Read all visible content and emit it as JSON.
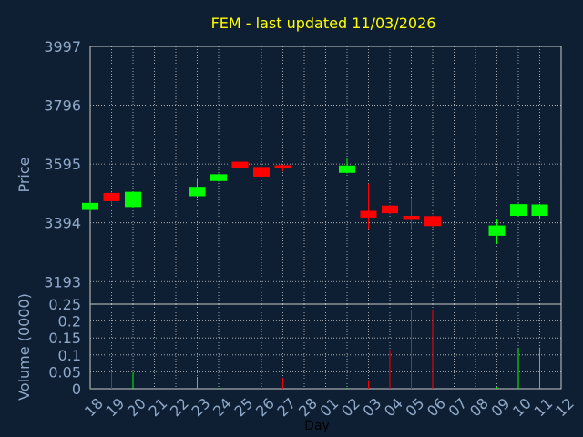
{
  "chart_data": [
    {
      "type": "candlestick",
      "title": "FEM - last updated 11/03/2026",
      "ylabel": "Price",
      "xlabel": "Day",
      "ylim": [
        3116,
        3997
      ],
      "y_ticks": [
        3997,
        3796,
        3595,
        3394,
        3193
      ],
      "x_ticks": [
        "18",
        "19",
        "20",
        "21",
        "22",
        "23",
        "24",
        "25",
        "26",
        "27",
        "28",
        "01",
        "02",
        "03",
        "04",
        "05",
        "06",
        "07",
        "08",
        "09",
        "10",
        "11",
        "12"
      ],
      "grid": true,
      "colors": {
        "up": "#00ff00",
        "down": "#ff0000",
        "title": "#ffff00",
        "axis_text": "#8fa8c8",
        "grid": "#c8c8c8",
        "frame": "#c8c8c8"
      },
      "candles": [
        {
          "day": "18",
          "open": 3438,
          "close": 3462,
          "high": 3464,
          "low": 3434
        },
        {
          "day": "19",
          "open": 3496,
          "close": 3468,
          "high": 3498,
          "low": 3456
        },
        {
          "day": "20",
          "open": 3448,
          "close": 3500,
          "high": 3502,
          "low": 3445
        },
        {
          "day": "23",
          "open": 3485,
          "close": 3517,
          "high": 3545,
          "low": 3483
        },
        {
          "day": "24",
          "open": 3537,
          "close": 3560,
          "high": 3562,
          "low": 3535
        },
        {
          "day": "25",
          "open": 3603,
          "close": 3582,
          "high": 3606,
          "low": 3580
        },
        {
          "day": "26",
          "open": 3585,
          "close": 3552,
          "high": 3588,
          "low": 3550
        },
        {
          "day": "27",
          "open": 3591,
          "close": 3580,
          "high": 3593,
          "low": 3570
        },
        {
          "day": "02",
          "open": 3565,
          "close": 3590,
          "high": 3617,
          "low": 3563
        },
        {
          "day": "03",
          "open": 3435,
          "close": 3412,
          "high": 3528,
          "low": 3370
        },
        {
          "day": "04",
          "open": 3453,
          "close": 3427,
          "high": 3455,
          "low": 3425
        },
        {
          "day": "05",
          "open": 3418,
          "close": 3404,
          "high": 3478,
          "low": 3368
        },
        {
          "day": "06",
          "open": 3417,
          "close": 3383,
          "high": 3419,
          "low": 3380
        },
        {
          "day": "09",
          "open": 3350,
          "close": 3385,
          "high": 3407,
          "low": 3322
        },
        {
          "day": "10",
          "open": 3418,
          "close": 3458,
          "high": 3460,
          "low": 3416
        },
        {
          "day": "11",
          "open": 3418,
          "close": 3457,
          "high": 3459,
          "low": 3405
        }
      ]
    },
    {
      "type": "bar",
      "ylabel": "Volume (0000)",
      "ylim": [
        0,
        0.25
      ],
      "y_ticks": [
        0,
        0.05,
        0.1,
        0.15,
        0.2,
        0.25
      ],
      "y_tick_labels": [
        "0",
        "0.05",
        "0.1",
        "0.15",
        "0.2",
        "0.25"
      ],
      "x_ticks": [
        "18",
        "19",
        "20",
        "21",
        "22",
        "23",
        "24",
        "25",
        "26",
        "27",
        "28",
        "01",
        "02",
        "03",
        "04",
        "05",
        "06",
        "07",
        "08",
        "09",
        "10",
        "11",
        "12"
      ],
      "bars": [
        {
          "day": "18",
          "value": 0.002,
          "dir": "up"
        },
        {
          "day": "19",
          "value": 0.052,
          "dir": "down"
        },
        {
          "day": "20",
          "value": 0.048,
          "dir": "up"
        },
        {
          "day": "23",
          "value": 0.035,
          "dir": "up"
        },
        {
          "day": "24",
          "value": 0.002,
          "dir": "up"
        },
        {
          "day": "25",
          "value": 0.005,
          "dir": "down"
        },
        {
          "day": "26",
          "value": 0.002,
          "dir": "down"
        },
        {
          "day": "27",
          "value": 0.032,
          "dir": "down"
        },
        {
          "day": "02",
          "value": 0.003,
          "dir": "up"
        },
        {
          "day": "03",
          "value": 0.025,
          "dir": "down"
        },
        {
          "day": "04",
          "value": 0.115,
          "dir": "down"
        },
        {
          "day": "05",
          "value": 0.232,
          "dir": "down"
        },
        {
          "day": "06",
          "value": 0.232,
          "dir": "down"
        },
        {
          "day": "09",
          "value": 0.005,
          "dir": "up"
        },
        {
          "day": "10",
          "value": 0.12,
          "dir": "up"
        },
        {
          "day": "11",
          "value": 0.122,
          "dir": "up"
        }
      ]
    }
  ]
}
